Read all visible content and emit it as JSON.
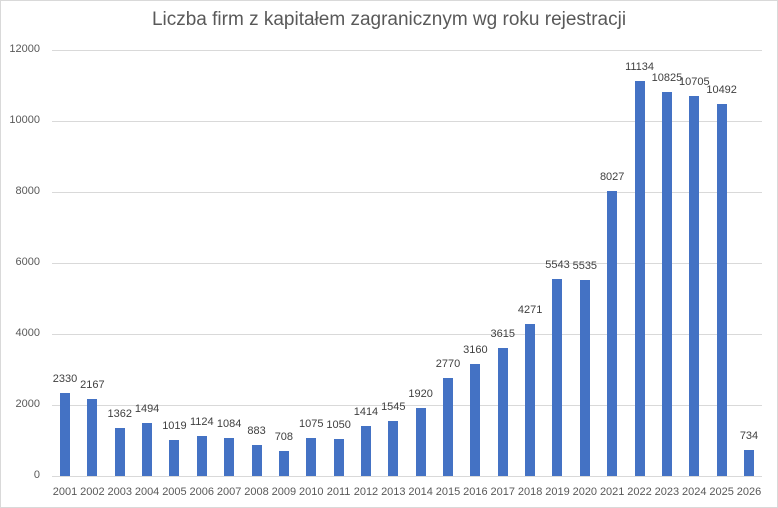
{
  "chart_data": {
    "type": "bar",
    "title": "Liczba firm z kapitałem zagranicznym wg roku rejestracji",
    "xlabel": "",
    "ylabel": "",
    "ylim": [
      0,
      12000
    ],
    "yticks": [
      0,
      2000,
      4000,
      6000,
      8000,
      10000,
      12000
    ],
    "grid": true,
    "legend": null,
    "bar_color": "#4472c4",
    "categories": [
      "2001",
      "2002",
      "2003",
      "2004",
      "2005",
      "2006",
      "2007",
      "2008",
      "2009",
      "2010",
      "2011",
      "2012",
      "2013",
      "2014",
      "2015",
      "2016",
      "2017",
      "2018",
      "2019",
      "2020",
      "2021",
      "2022",
      "2023",
      "2024",
      "2025",
      "2026"
    ],
    "values": [
      2330,
      2167,
      1362,
      1494,
      1019,
      1124,
      1084,
      883,
      708,
      1075,
      1050,
      1414,
      1545,
      1920,
      2770,
      3160,
      3615,
      4271,
      5543,
      5535,
      8027,
      11134,
      10825,
      10705,
      10492,
      734
    ],
    "data_labels": true
  }
}
